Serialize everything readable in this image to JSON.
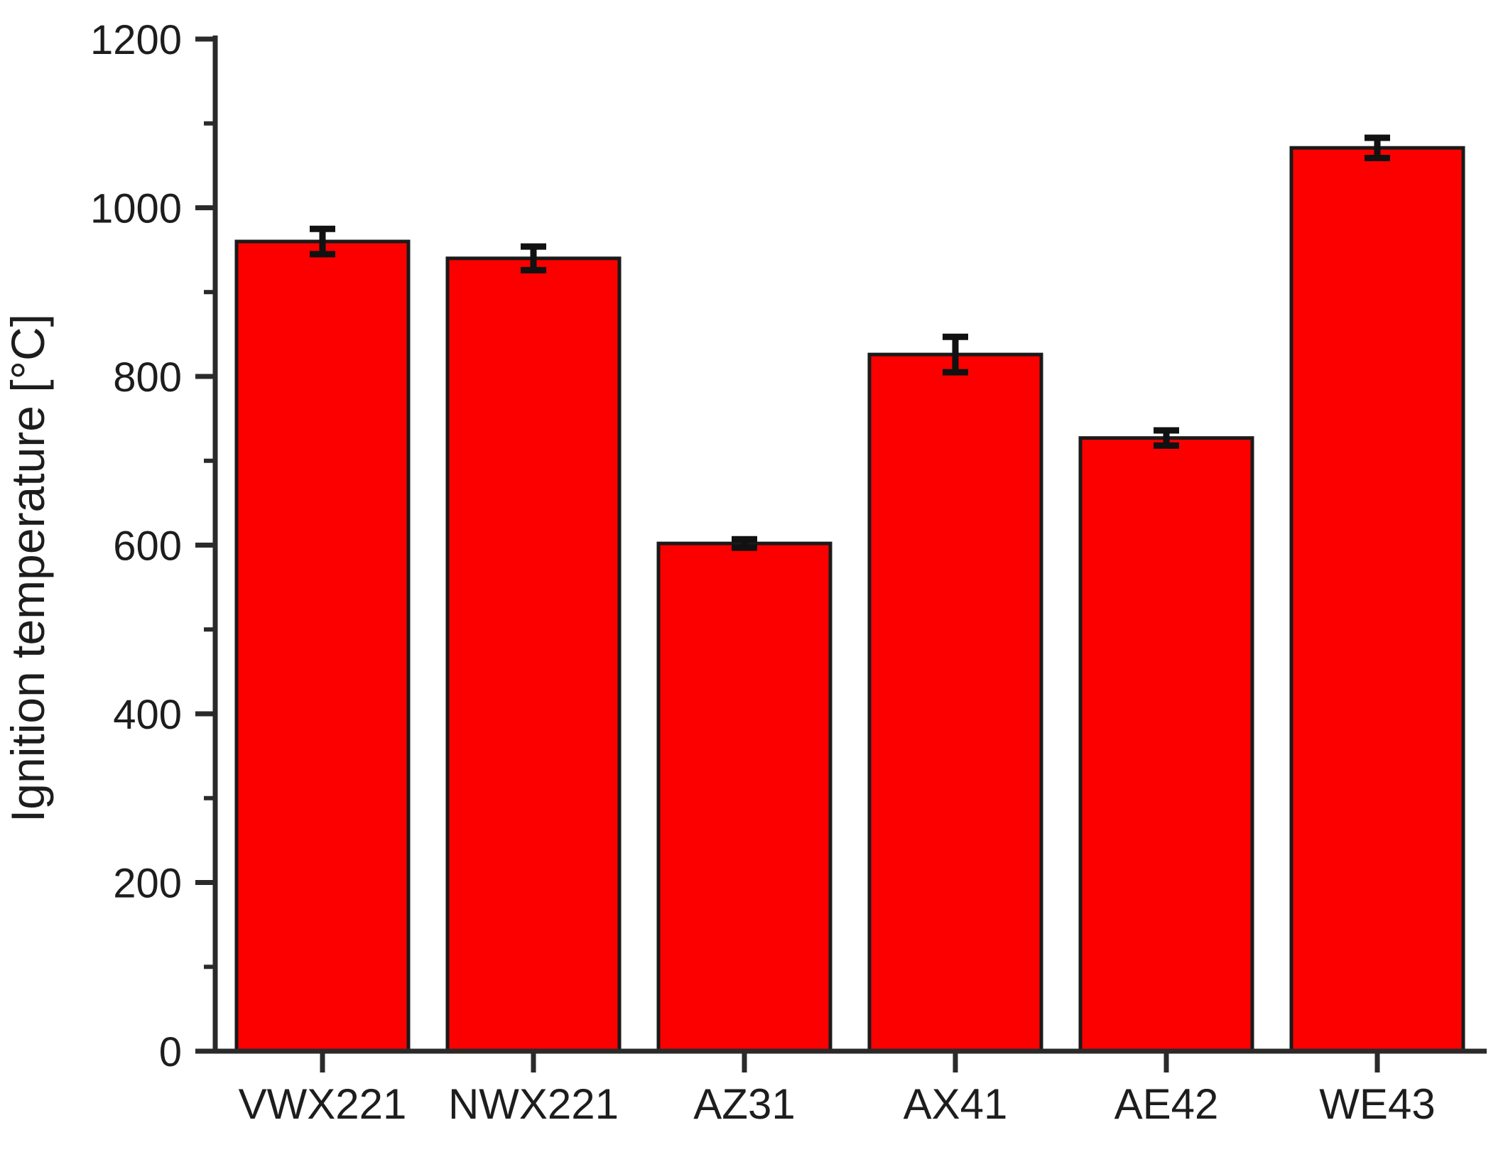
{
  "chart_data": {
    "type": "bar",
    "title": "",
    "xlabel": "",
    "ylabel": "Ignition temperature [°C]",
    "categories": [
      "VWX221",
      "NWX221",
      "AZ31",
      "AX41",
      "AE42",
      "WE43"
    ],
    "values": [
      960,
      940,
      602,
      826,
      727,
      1071
    ],
    "errors": [
      15,
      14,
      5,
      21,
      9,
      12
    ],
    "ylim": [
      0,
      1200
    ],
    "yticks": [
      0,
      200,
      400,
      600,
      800,
      1000,
      1200
    ],
    "ytick_labels": [
      "0",
      "200",
      "400",
      "600",
      "800",
      "1000",
      "1200"
    ],
    "minor_yticks": [
      100,
      300,
      500,
      700,
      900,
      1100
    ],
    "grid": "off",
    "legend": "none",
    "bar_color": "#fc0000",
    "bar_edge_color": "#1a1a1a",
    "error_bar_color": "#111111",
    "axis_color": "#2a2a2a",
    "text_color": "#1d1d1d",
    "background_color": "#ffffff"
  }
}
